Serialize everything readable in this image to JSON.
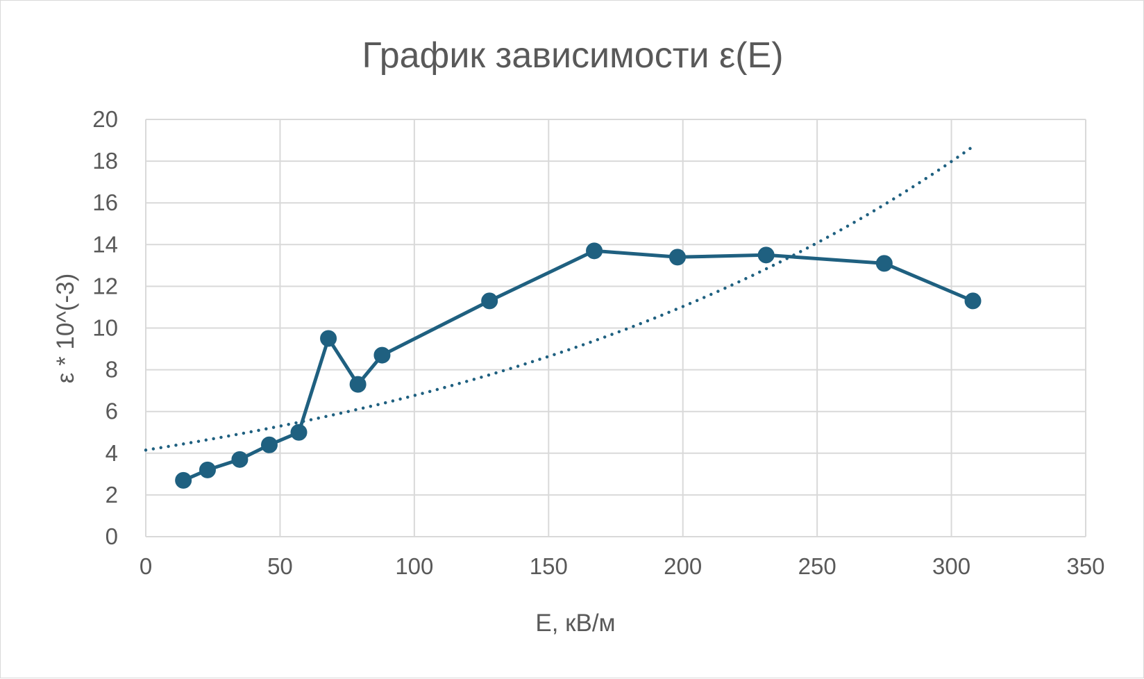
{
  "chart_data": {
    "type": "line",
    "title": "График зависимости ε(E)",
    "xlabel": "E, кВ/м",
    "ylabel": "ε * 10^(-3)",
    "xlim": [
      0,
      350
    ],
    "ylim": [
      0,
      20
    ],
    "x_ticks": [
      "0",
      "50",
      "100",
      "150",
      "200",
      "250",
      "300",
      "350"
    ],
    "y_ticks": [
      "0",
      "2",
      "4",
      "6",
      "8",
      "10",
      "12",
      "14",
      "16",
      "18",
      "20"
    ],
    "grid": true,
    "legend": "none",
    "colors": {
      "series": "#1f6080",
      "grid": "#d9d9d9",
      "text": "#595959"
    },
    "series": [
      {
        "x": [
          14,
          23,
          35,
          46,
          57,
          68,
          79,
          88,
          128,
          167,
          198,
          231,
          275,
          308
        ],
        "y": [
          2.7,
          3.2,
          3.7,
          4.4,
          5.0,
          9.5,
          7.3,
          8.7,
          11.3,
          13.7,
          13.4,
          13.5,
          13.1,
          11.3
        ]
      }
    ],
    "trendline": {
      "style": "dotted",
      "type": "exponential",
      "x_range": [
        0,
        308
      ],
      "y_start": 4.15,
      "y_end": 18.7
    }
  }
}
